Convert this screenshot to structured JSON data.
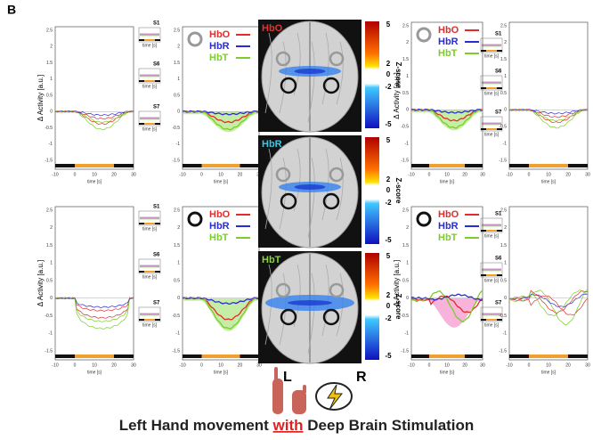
{
  "panel_label": "B",
  "legend": [
    "HbO",
    "HbR",
    "HbT"
  ],
  "insets": [
    "S1",
    "S6",
    "S7"
  ],
  "y_axis_label": "Δ Activity [a.u.]",
  "x_axis_label": "time [s]",
  "x_ticks": [
    "-10",
    "0",
    "10",
    "20",
    "30"
  ],
  "y_ticks": [
    "2.5",
    "2",
    "1.5",
    "1",
    "0.5",
    "0",
    "-0.5",
    "-1",
    "-1.5"
  ],
  "colorbar": {
    "label": "Z-score",
    "ticks": [
      "5",
      "2",
      "0",
      "-2",
      "-5"
    ]
  },
  "brain_maps": [
    "HbO",
    "HbR",
    "HbT"
  ],
  "hemispheres": [
    "L",
    "R"
  ],
  "footer": {
    "before": "Left Hand movement ",
    "highlight": "with",
    "after": " Deep Brain Stimulation"
  }
}
